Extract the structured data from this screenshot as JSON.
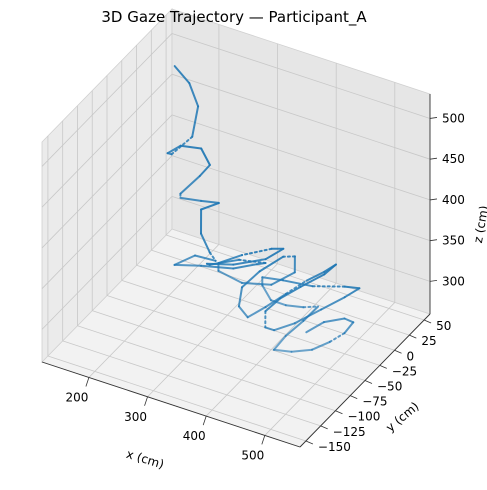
{
  "chart_data": {
    "type": "line",
    "projection": "3d",
    "title": "3D Gaze Trajectory — Participant_A",
    "xlabel": "x (cm)",
    "ylabel": "y (cm)",
    "zlabel": "z (cm)",
    "x_ticks": [
      "200",
      "300",
      "400",
      "500"
    ],
    "y_ticks": [
      "−150",
      "−125",
      "−100",
      "−75",
      "−50",
      "−25",
      "0",
      "25",
      "50"
    ],
    "z_ticks": [
      "300",
      "350",
      "400",
      "450",
      "500"
    ],
    "xlim": [
      120,
      560
    ],
    "ylim": [
      -160,
      60
    ],
    "zlim": [
      260,
      530
    ],
    "grid": true,
    "series_color": "#1f77b4",
    "x": [
      175,
      205,
      225,
      225,
      200,
      178,
      175,
      200,
      230,
      238,
      225,
      215,
      235,
      250,
      235,
      210,
      230,
      260,
      280,
      255,
      225,
      250,
      290,
      320,
      340,
      305,
      265,
      250,
      280,
      320,
      345,
      335,
      310,
      300,
      320,
      350,
      380,
      400,
      385,
      360,
      340,
      330,
      345,
      365,
      380,
      395,
      410,
      430,
      440,
      425,
      400,
      380,
      370,
      385,
      405,
      430,
      455,
      475,
      490,
      475,
      440,
      410,
      395,
      410,
      430,
      445,
      460,
      470,
      465,
      455,
      450,
      470,
      490,
      505,
      520,
      525,
      515,
      495,
      480
    ],
    "y": [
      10,
      5,
      0,
      -10,
      -20,
      -5,
      20,
      30,
      15,
      -10,
      -30,
      -20,
      -5,
      10,
      25,
      20,
      0,
      -15,
      -25,
      -35,
      -40,
      -20,
      -5,
      5,
      0,
      -10,
      -20,
      -10,
      5,
      20,
      25,
      15,
      -10,
      -40,
      -60,
      -50,
      -30,
      -10,
      5,
      10,
      -10,
      -30,
      -50,
      -55,
      -40,
      -20,
      0,
      10,
      20,
      15,
      0,
      -15,
      -30,
      -45,
      -50,
      -40,
      -20,
      0,
      10,
      0,
      -20,
      -40,
      -60,
      -75,
      -80,
      -70,
      -55,
      -40,
      -60,
      -80,
      -95,
      -85,
      -70,
      -55,
      -45,
      -35,
      -40,
      -55,
      -70
    ],
    "z": [
      510,
      500,
      480,
      450,
      430,
      415,
      405,
      400,
      398,
      405,
      395,
      380,
      370,
      360,
      345,
      335,
      325,
      320,
      322,
      330,
      315,
      305,
      300,
      305,
      315,
      318,
      310,
      300,
      295,
      300,
      315,
      320,
      325,
      335,
      345,
      330,
      320,
      325,
      330,
      320,
      312,
      305,
      300,
      295,
      300,
      305,
      310,
      318,
      322,
      310,
      300,
      292,
      285,
      280,
      285,
      292,
      300,
      305,
      312,
      318,
      325,
      340,
      355,
      360,
      350,
      340,
      330,
      322,
      318,
      312,
      305,
      300,
      296,
      298,
      305,
      312,
      318,
      320,
      315
    ]
  }
}
